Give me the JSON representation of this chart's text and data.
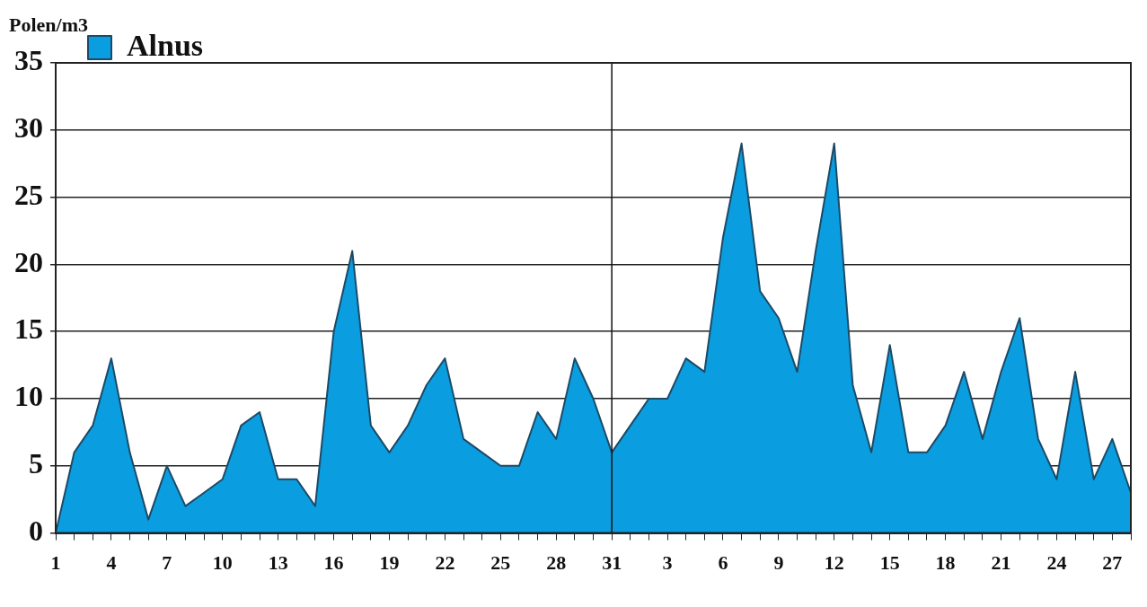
{
  "chart_data": {
    "type": "area",
    "ylabel": "Polen/m3",
    "categories": [
      "1",
      null,
      null,
      "4",
      null,
      null,
      "7",
      null,
      null,
      "10",
      null,
      null,
      "13",
      null,
      null,
      "16",
      null,
      null,
      "19",
      null,
      null,
      "22",
      null,
      null,
      "25",
      null,
      null,
      "28",
      null,
      null,
      "31",
      null,
      null,
      "3",
      null,
      null,
      "6",
      null,
      null,
      "9",
      null,
      null,
      "12",
      null,
      null,
      "15",
      null,
      null,
      "18",
      null,
      null,
      "21",
      null,
      null,
      "24",
      null,
      null,
      "27",
      null
    ],
    "series": [
      {
        "name": "Alnus",
        "color": "#0a9ee0",
        "values": [
          0,
          6,
          8,
          13,
          6,
          1,
          5,
          2,
          3,
          4,
          8,
          9,
          4,
          4,
          2,
          15,
          21,
          8,
          6,
          8,
          11,
          13,
          7,
          6,
          5,
          5,
          9,
          7,
          13,
          10,
          6,
          8,
          10,
          10,
          13,
          12,
          22,
          29,
          18,
          16,
          12,
          21,
          29,
          11,
          6,
          14,
          6,
          6,
          8,
          12,
          7,
          12,
          16,
          7,
          4,
          12,
          4,
          7,
          3
        ]
      }
    ],
    "ylim": [
      0,
      35
    ],
    "yticks": [
      0,
      5,
      10,
      15,
      20,
      25,
      30,
      35
    ],
    "grid": "y",
    "legend": "top left",
    "marker": "none",
    "ref_lines": [
      {
        "axis": "x",
        "value": "31",
        "color": "#111111"
      }
    ]
  }
}
